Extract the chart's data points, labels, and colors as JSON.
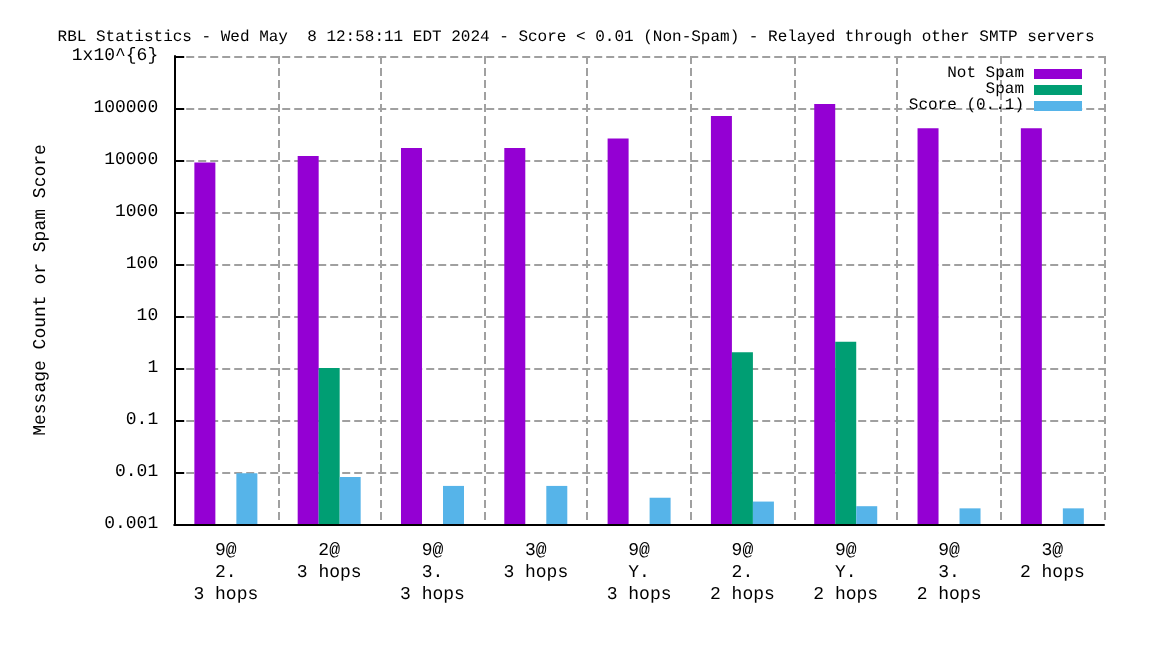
{
  "chart_data": {
    "type": "bar",
    "title": "RBL Statistics - Wed May  8 12:58:11 EDT 2024 - Score < 0.01 (Non-Spam) - Relayed through other SMTP servers",
    "ylabel": "Message Count or Spam Score",
    "categories": [
      "9@\n2.\n3 hops",
      "2@\n3 hops",
      "9@\n3.\n3 hops",
      "3@\n3 hops",
      "9@\nY.\n3 hops",
      "9@\n2.\n2 hops",
      "9@\nY.\n2 hops",
      "9@\n3.\n2 hops",
      "3@\n2 hops"
    ],
    "series": [
      {
        "name": "Not Spam",
        "color": "#9400d3",
        "values": [
          9000,
          12000,
          17000,
          17000,
          26000,
          70000,
          120000,
          41000,
          41000
        ]
      },
      {
        "name": "Spam",
        "color": "#009e73",
        "values": [
          null,
          1,
          null,
          null,
          null,
          2,
          3.2,
          null,
          null
        ]
      },
      {
        "name": "Score (0..1)",
        "color": "#56b4e9",
        "values": [
          0.0095,
          0.008,
          0.0054,
          0.0054,
          0.0032,
          0.0027,
          0.0022,
          0.002,
          0.002
        ]
      }
    ],
    "log": "y",
    "ylim": [
      0.001,
      1000000
    ],
    "yticks": [
      0.001,
      0.01,
      0.1,
      1,
      10,
      100,
      1000,
      10000,
      100000,
      {
        "value": 1000000,
        "label": "1x10^{6}"
      }
    ],
    "grid": true,
    "legend": "top right"
  }
}
